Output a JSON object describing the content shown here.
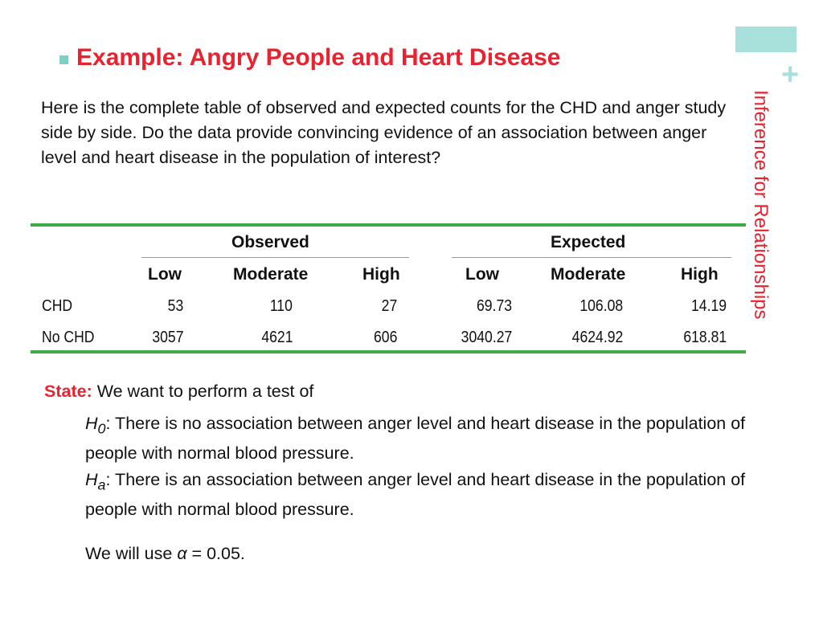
{
  "side_label": "Inference for Relationships",
  "plus_glyph": "+",
  "title": "Example: Angry People and Heart Disease",
  "intro": "Here is the complete table of observed and expected counts for the CHD and anger study side by side. Do the data provide convincing evidence of an association between anger level and heart disease in the population of interest?",
  "table": {
    "observed_header": "Observed",
    "expected_header": "Expected",
    "columns": [
      "Low",
      "Moderate",
      "High",
      "Low",
      "Moderate",
      "High"
    ],
    "rows": [
      {
        "label": "CHD",
        "values": [
          "53",
          "110",
          "27",
          "69.73",
          "106.08",
          "14.19"
        ]
      },
      {
        "label": "No CHD",
        "values": [
          "3057",
          "4621",
          "606",
          "3040.27",
          "4624.92",
          "618.81"
        ]
      }
    ]
  },
  "state": {
    "label": "State:",
    "text": " We want to perform a test of",
    "h0_symbol": "H",
    "h0_sub": "0",
    "h0_text": ": There is no association between anger level and heart disease in the population of people with normal blood pressure.",
    "ha_symbol": "H",
    "ha_sub": "a",
    "ha_text": ": There is an association between anger level and heart disease in the population of people with normal blood pressure.",
    "alpha_prefix": "We will use ",
    "alpha_symbol": "α",
    "alpha_suffix": " = 0.05."
  },
  "colors": {
    "accent_red": "#e8232f",
    "accent_teal": "#a8e0dc",
    "rule_green": "#3dab4a"
  }
}
